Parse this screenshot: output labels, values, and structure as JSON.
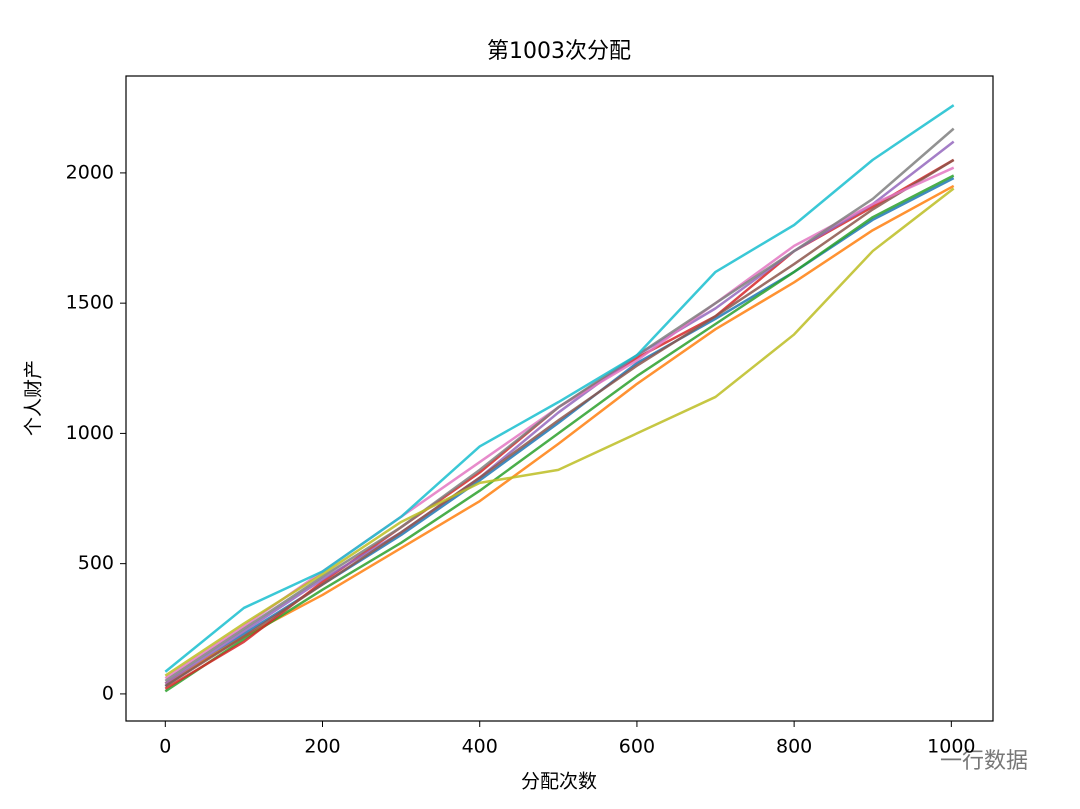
{
  "chart_data": {
    "type": "line",
    "title": "第1003次分配",
    "x_label": "分配次数",
    "y_label": "个人财产",
    "x": [
      0,
      100,
      200,
      300,
      400,
      500,
      600,
      700,
      800,
      900,
      1003
    ],
    "xlim": [
      -50,
      1053
    ],
    "ylim": [
      -104,
      2372
    ],
    "xticks": [
      0,
      200,
      400,
      600,
      800,
      1000
    ],
    "yticks": [
      0,
      500,
      1000,
      1500,
      2000
    ],
    "grid": false,
    "series": [
      {
        "color": "#1f77b4",
        "values": [
          30,
          230,
          420,
          610,
          820,
          1040,
          1270,
          1440,
          1620,
          1820,
          1980
        ]
      },
      {
        "color": "#ff7f0e",
        "values": [
          40,
          220,
          380,
          560,
          740,
          960,
          1190,
          1400,
          1580,
          1780,
          1950
        ]
      },
      {
        "color": "#2ca02c",
        "values": [
          10,
          210,
          400,
          580,
          780,
          1000,
          1220,
          1420,
          1620,
          1830,
          1990
        ]
      },
      {
        "color": "#d62728",
        "values": [
          20,
          200,
          430,
          640,
          850,
          1100,
          1290,
          1450,
          1700,
          1870,
          2050
        ]
      },
      {
        "color": "#9467bd",
        "values": [
          40,
          240,
          440,
          620,
          830,
          1080,
          1300,
          1480,
          1700,
          1880,
          2120
        ]
      },
      {
        "color": "#8c564b",
        "values": [
          30,
          220,
          420,
          620,
          830,
          1050,
          1260,
          1450,
          1650,
          1860,
          2050
        ]
      },
      {
        "color": "#e377c2",
        "values": [
          60,
          260,
          470,
          680,
          890,
          1100,
          1280,
          1500,
          1720,
          1880,
          2020
        ]
      },
      {
        "color": "#7f7f7f",
        "values": [
          50,
          250,
          450,
          640,
          860,
          1100,
          1300,
          1500,
          1700,
          1900,
          2170
        ]
      },
      {
        "color": "#bcbd22",
        "values": [
          70,
          270,
          460,
          660,
          810,
          860,
          1000,
          1140,
          1380,
          1700,
          1940
        ]
      },
      {
        "color": "#17becf",
        "values": [
          85,
          330,
          470,
          680,
          950,
          1120,
          1300,
          1620,
          1800,
          2050,
          2260
        ]
      }
    ]
  },
  "watermark": "一行数据"
}
